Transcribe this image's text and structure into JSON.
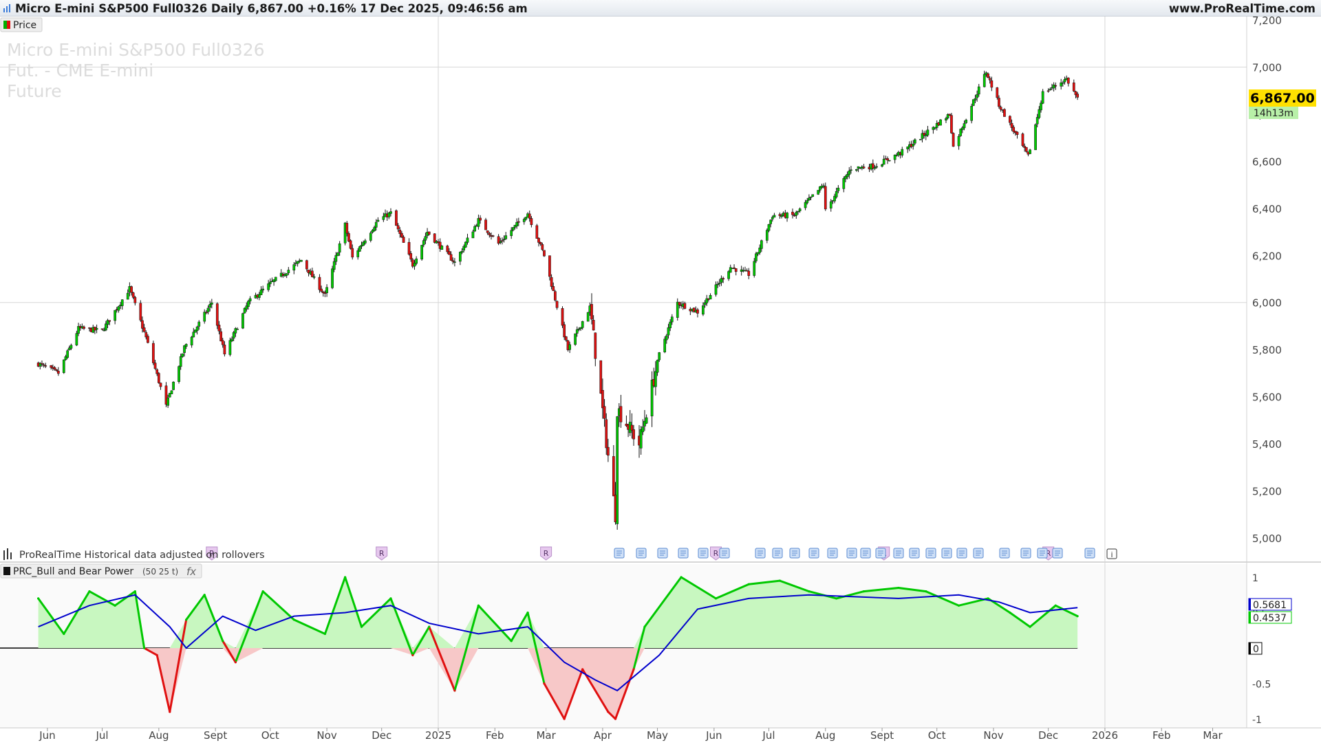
{
  "header": {
    "title": "Micro E-mini S&P500 Full0326 Daily 6,867.00 +0.16% 17 Dec 2025, 09:46:56 am",
    "site": "www.ProRealTime.com"
  },
  "price_panel": {
    "legend_label": "Price",
    "watermark": [
      "Micro E-mini S&P500 Full0326",
      "Fut. - CME E-mini",
      "Future"
    ],
    "current_price": "6,867.00",
    "countdown": "14h13m",
    "note": "ProRealTime Historical data adjusted on rollovers",
    "event_marker_label": "R"
  },
  "indicator_panel": {
    "legend_label": "PRC_Bull and Bear Power",
    "params": "(50 25 t)",
    "fx_label": "fx",
    "value_blue": "0.5681",
    "value_green": "0.4537",
    "value_zero": "0"
  },
  "colors": {
    "bull": "#00c800",
    "bear": "#e01010",
    "fill_bull": "#c8f7c0",
    "fill_bear": "#f7c8c8",
    "signal": "#0000cc",
    "price_badge": "#ffe000",
    "countdown_badge": "#b8f0a8"
  },
  "chart_data": [
    {
      "type": "candlestick",
      "title": "Micro E-mini S&P500 Full0326 Daily",
      "y_ticks": [
        "7,200",
        "7,000",
        "6,800",
        "6,600",
        "6,400",
        "6,200",
        "6,000",
        "5,800",
        "5,600",
        "5,400",
        "5,200",
        "5,000"
      ],
      "ylim": [
        5000,
        7200
      ],
      "x_ticks": [
        "Jun",
        "Jul",
        "Aug",
        "Sept",
        "Oct",
        "Nov",
        "Dec",
        "2025",
        "Feb",
        "Mar",
        "Apr",
        "May",
        "Jun",
        "Jul",
        "Aug",
        "Sept",
        "Oct",
        "Nov",
        "Dec",
        "2026",
        "Feb",
        "Mar"
      ],
      "close_path": [
        [
          "2024-05-27",
          5740
        ],
        [
          "2024-06-07",
          5700
        ],
        [
          "2024-06-18",
          5890
        ],
        [
          "2024-07-01",
          5880
        ],
        [
          "2024-07-16",
          6060
        ],
        [
          "2024-07-25",
          5850
        ],
        [
          "2024-08-05",
          5560
        ],
        [
          "2024-08-15",
          5810
        ],
        [
          "2024-08-30",
          6000
        ],
        [
          "2024-09-06",
          5780
        ],
        [
          "2024-09-19",
          6000
        ],
        [
          "2024-10-01",
          6080
        ],
        [
          "2024-10-18",
          6180
        ],
        [
          "2024-10-31",
          6030
        ],
        [
          "2024-11-11",
          6330
        ],
        [
          "2024-11-15",
          6190
        ],
        [
          "2024-11-29",
          6350
        ],
        [
          "2024-12-06",
          6380
        ],
        [
          "2024-12-18",
          6160
        ],
        [
          "2024-12-26",
          6300
        ],
        [
          "2025-01-10",
          6170
        ],
        [
          "2025-01-23",
          6350
        ],
        [
          "2025-02-03",
          6250
        ],
        [
          "2025-02-19",
          6380
        ],
        [
          "2025-02-28",
          6200
        ],
        [
          "2025-03-13",
          5800
        ],
        [
          "2025-03-25",
          5980
        ],
        [
          "2025-04-04",
          5350
        ],
        [
          "2025-04-08",
          5100
        ],
        [
          "2025-04-09",
          5550
        ],
        [
          "2025-04-21",
          5400
        ],
        [
          "2025-05-02",
          5780
        ],
        [
          "2025-05-12",
          6000
        ],
        [
          "2025-05-23",
          5960
        ],
        [
          "2025-06-10",
          6150
        ],
        [
          "2025-06-20",
          6120
        ],
        [
          "2025-07-03",
          6370
        ],
        [
          "2025-07-15",
          6370
        ],
        [
          "2025-07-31",
          6500
        ],
        [
          "2025-08-01",
          6390
        ],
        [
          "2025-08-15",
          6570
        ],
        [
          "2025-08-28",
          6580
        ],
        [
          "2025-09-12",
          6640
        ],
        [
          "2025-09-25",
          6720
        ],
        [
          "2025-10-08",
          6800
        ],
        [
          "2025-10-10",
          6660
        ],
        [
          "2025-10-28",
          6980
        ],
        [
          "2025-11-04",
          6840
        ],
        [
          "2025-11-20",
          6620
        ],
        [
          "2025-11-28",
          6890
        ],
        [
          "2025-12-11",
          6950
        ],
        [
          "2025-12-17",
          6867
        ]
      ]
    },
    {
      "type": "line",
      "title": "PRC_Bull and Bear Power",
      "params": "(50 25 t)",
      "y_ticks": [
        "1",
        "0.5",
        "0",
        "-0.5",
        "-1"
      ],
      "ylim": [
        -1,
        1
      ],
      "series": [
        {
          "name": "bull/bear power",
          "values": [
            [
              "2024-05-27",
              0.7
            ],
            [
              "2024-06-10",
              0.2
            ],
            [
              "2024-06-24",
              0.8
            ],
            [
              "2024-07-08",
              0.6
            ],
            [
              "2024-07-19",
              0.8
            ],
            [
              "2024-07-24",
              0.0
            ],
            [
              "2024-07-31",
              -0.1
            ],
            [
              "2024-08-07",
              -0.9
            ],
            [
              "2024-08-16",
              0.4
            ],
            [
              "2024-08-26",
              0.75
            ],
            [
              "2024-09-05",
              0.1
            ],
            [
              "2024-09-12",
              -0.2
            ],
            [
              "2024-09-27",
              0.8
            ],
            [
              "2024-10-14",
              0.4
            ],
            [
              "2024-10-31",
              0.2
            ],
            [
              "2024-11-11",
              1.0
            ],
            [
              "2024-11-20",
              0.3
            ],
            [
              "2024-12-06",
              0.7
            ],
            [
              "2024-12-18",
              -0.1
            ],
            [
              "2024-12-27",
              0.3
            ],
            [
              "2025-01-10",
              -0.6
            ],
            [
              "2025-01-23",
              0.6
            ],
            [
              "2025-02-10",
              0.1
            ],
            [
              "2025-02-19",
              0.5
            ],
            [
              "2025-02-28",
              -0.5
            ],
            [
              "2025-03-11",
              -1.0
            ],
            [
              "2025-03-21",
              -0.3
            ],
            [
              "2025-04-04",
              -0.9
            ],
            [
              "2025-04-08",
              -1.0
            ],
            [
              "2025-04-18",
              -0.3
            ],
            [
              "2025-04-24",
              0.3
            ],
            [
              "2025-05-14",
              1.0
            ],
            [
              "2025-06-02",
              0.7
            ],
            [
              "2025-06-20",
              0.9
            ],
            [
              "2025-07-07",
              0.95
            ],
            [
              "2025-07-23",
              0.8
            ],
            [
              "2025-08-07",
              0.7
            ],
            [
              "2025-08-22",
              0.8
            ],
            [
              "2025-09-10",
              0.85
            ],
            [
              "2025-09-25",
              0.8
            ],
            [
              "2025-10-13",
              0.6
            ],
            [
              "2025-10-29",
              0.7
            ],
            [
              "2025-11-10",
              0.5
            ],
            [
              "2025-11-21",
              0.3
            ],
            [
              "2025-12-05",
              0.6
            ],
            [
              "2025-12-17",
              0.45
            ]
          ]
        },
        {
          "name": "signal",
          "values": [
            [
              "2024-05-27",
              0.3
            ],
            [
              "2024-06-24",
              0.6
            ],
            [
              "2024-07-19",
              0.75
            ],
            [
              "2024-08-07",
              0.3
            ],
            [
              "2024-08-16",
              0.0
            ],
            [
              "2024-09-05",
              0.45
            ],
            [
              "2024-09-23",
              0.25
            ],
            [
              "2024-10-14",
              0.45
            ],
            [
              "2024-11-11",
              0.5
            ],
            [
              "2024-12-06",
              0.6
            ],
            [
              "2024-12-27",
              0.35
            ],
            [
              "2025-01-23",
              0.2
            ],
            [
              "2025-02-19",
              0.3
            ],
            [
              "2025-03-11",
              -0.2
            ],
            [
              "2025-03-28",
              -0.45
            ],
            [
              "2025-04-09",
              -0.6
            ],
            [
              "2025-05-02",
              -0.1
            ],
            [
              "2025-05-23",
              0.55
            ],
            [
              "2025-06-20",
              0.7
            ],
            [
              "2025-07-23",
              0.75
            ],
            [
              "2025-09-10",
              0.7
            ],
            [
              "2025-10-13",
              0.75
            ],
            [
              "2025-11-04",
              0.65
            ],
            [
              "2025-11-21",
              0.5
            ],
            [
              "2025-12-17",
              0.57
            ]
          ]
        }
      ]
    }
  ]
}
